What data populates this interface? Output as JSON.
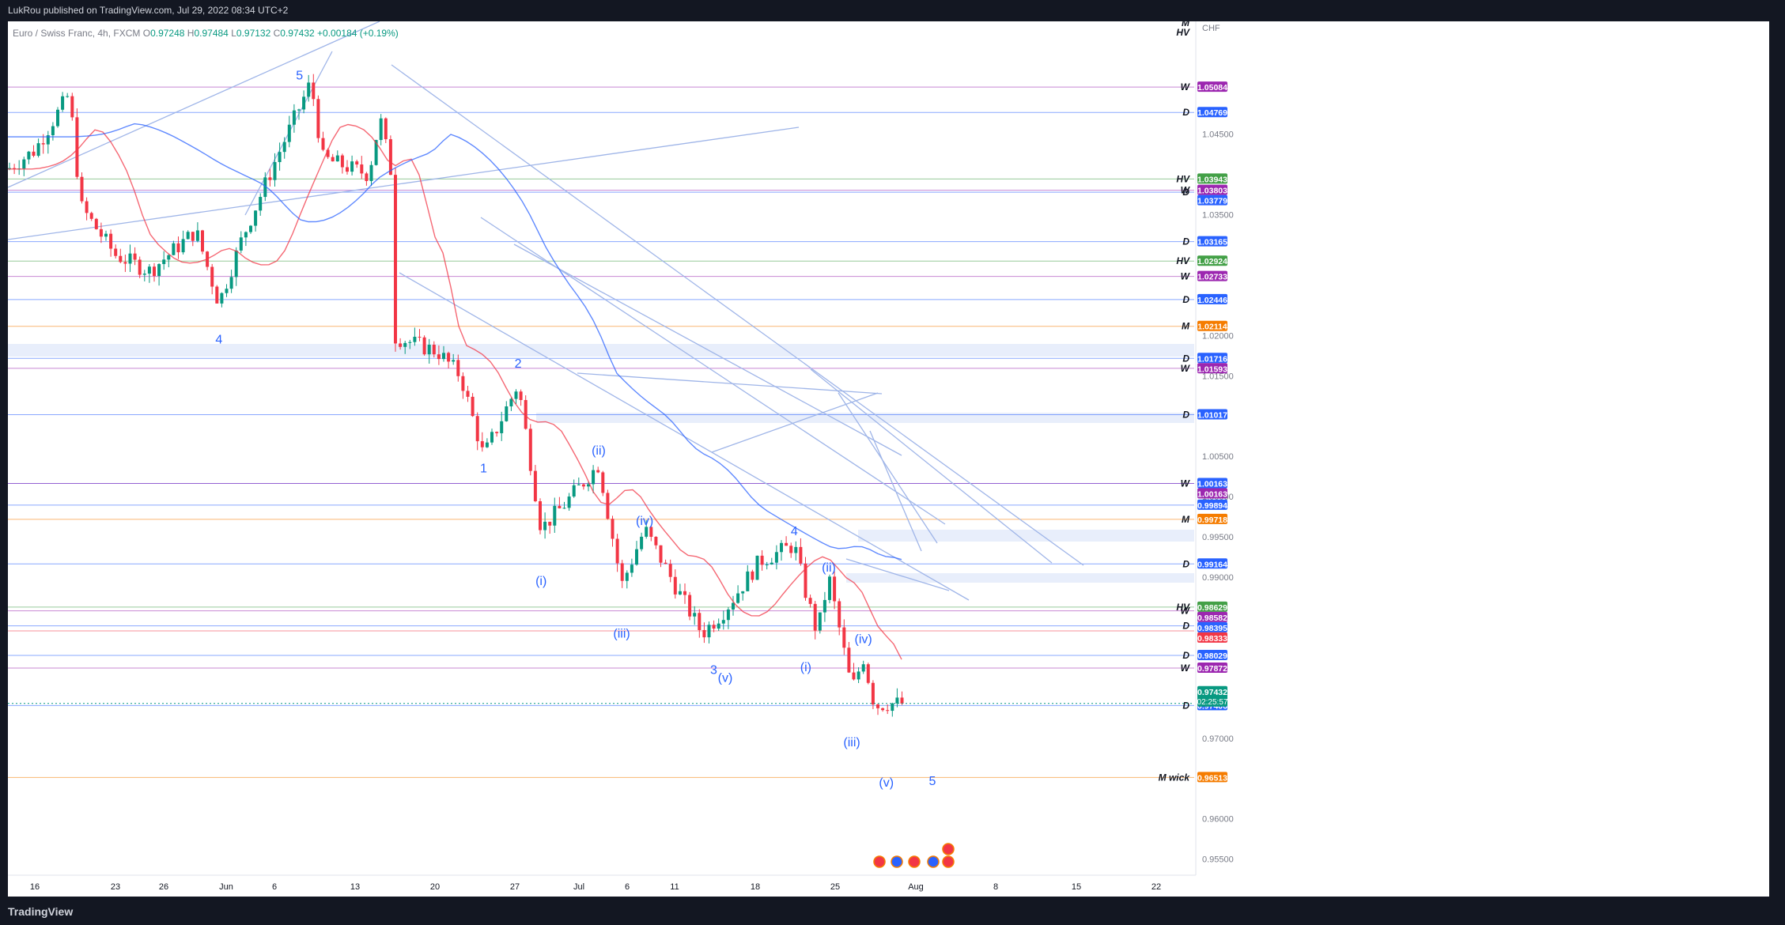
{
  "publisher": "LukRou published on TradingView.com, Jul 29, 2022 08:34 UTC+2",
  "brand": "TradingView",
  "symbol": {
    "name": "Euro / Swiss Franc, 4h, FXCM",
    "open_label": "O",
    "open": "0.97248",
    "high_label": "H",
    "high": "0.97484",
    "low_label": "L",
    "low": "0.97132",
    "close_label": "C",
    "close": "0.97432",
    "change": "+0.00184 (+0.19%)"
  },
  "colors": {
    "up": "#089981",
    "down": "#f23645",
    "ma_fast": "#f23645",
    "ma_slow": "#2962ff",
    "trendline": "#9fb5e8",
    "wave_label": "#2962ff"
  },
  "chart_data": {
    "type": "candlestick",
    "currency": "CHF",
    "y_range": [
      0.953,
      1.059
    ],
    "x_axis_labels": [
      "16",
      "23",
      "26",
      "Jun",
      "6",
      "13",
      "20",
      "27",
      "Jul",
      "6",
      "11",
      "18",
      "25",
      "Aug",
      "8",
      "15",
      "22"
    ],
    "y_tick_labels": [
      "1.04500",
      "1.03500",
      "1.02000",
      "1.01500",
      "1.00500",
      "1.00000",
      "0.99500",
      "0.99000",
      "0.97000",
      "0.96000",
      "0.95500"
    ],
    "price_levels": [
      {
        "value": "1.05084",
        "color": "#9c27b0",
        "tag": "W"
      },
      {
        "value": "1.04769",
        "color": "#2962ff",
        "tag": "D"
      },
      {
        "value": "1.03943",
        "color": "#43a047",
        "tag": "HV"
      },
      {
        "value": "1.03803",
        "color": "#9c27b0",
        "tag": "W"
      },
      {
        "value": "1.03779",
        "color": "#2962ff",
        "tag": "D"
      },
      {
        "value": "1.03165",
        "color": "#2962ff",
        "tag": "D"
      },
      {
        "value": "1.02924",
        "color": "#43a047",
        "tag": "HV"
      },
      {
        "value": "1.02733",
        "color": "#9c27b0",
        "tag": "W"
      },
      {
        "value": "1.02446",
        "color": "#2962ff",
        "tag": "D"
      },
      {
        "value": "1.02114",
        "color": "#f57c00",
        "tag": "M"
      },
      {
        "value": "1.01716",
        "color": "#2962ff",
        "tag": "D"
      },
      {
        "value": "1.01593",
        "color": "#9c27b0",
        "tag": "W"
      },
      {
        "value": "1.01017",
        "color": "#2962ff",
        "tag": "D"
      },
      {
        "value": "1.00163",
        "color": "#2962ff",
        "tag": ""
      },
      {
        "value": "1.00163",
        "color": "#9c27b0",
        "tag": "W"
      },
      {
        "value": "0.99894",
        "color": "#2962ff",
        "tag": ""
      },
      {
        "value": "0.99718",
        "color": "#f57c00",
        "tag": "M"
      },
      {
        "value": "0.99164",
        "color": "#2962ff",
        "tag": "D"
      },
      {
        "value": "0.98629",
        "color": "#43a047",
        "tag": "HV"
      },
      {
        "value": "0.98582",
        "color": "#9c27b0",
        "tag": "W"
      },
      {
        "value": "0.98395",
        "color": "#2962ff",
        "tag": "D"
      },
      {
        "value": "0.98333",
        "color": "#f23645",
        "tag": ""
      },
      {
        "value": "0.98029",
        "color": "#2962ff",
        "tag": "D"
      },
      {
        "value": "0.97872",
        "color": "#9c27b0",
        "tag": "W"
      },
      {
        "value": "0.97406",
        "color": "#2962ff",
        "tag": "D"
      },
      {
        "value": "0.96513",
        "color": "#f57c00",
        "tag": "M wick"
      }
    ],
    "current_price": {
      "value": "0.97432",
      "countdown": "02:25:57",
      "color": "#089981"
    },
    "top_tags": [
      "M",
      "HV"
    ],
    "wave_labels": [
      {
        "text": "5",
        "date": "Jun 8",
        "price": 1.0518
      },
      {
        "text": "4",
        "date": "Jun 1",
        "price": 1.019
      },
      {
        "text": "2",
        "date": "Jun 27",
        "price": 1.016
      },
      {
        "text": "1",
        "date": "Jun 24",
        "price": 1.003
      },
      {
        "text": "(ii)",
        "date": "Jul 4",
        "price": 1.0052
      },
      {
        "text": "(i)",
        "date": "Jun 29",
        "price": 0.989
      },
      {
        "text": "(iv)",
        "date": "Jul 8",
        "price": 0.9965
      },
      {
        "text": "(iii)",
        "date": "Jul 6",
        "price": 0.9825
      },
      {
        "text": "3",
        "date": "Jul 14",
        "price": 0.978
      },
      {
        "text": "(v)",
        "date": "Jul 15",
        "price": 0.977
      },
      {
        "text": "4",
        "date": "Jul 21",
        "price": 0.9952
      },
      {
        "text": "(ii)",
        "date": "Jul 24",
        "price": 0.9907
      },
      {
        "text": "(iv)",
        "date": "Jul 27",
        "price": 0.9818
      },
      {
        "text": "(i)",
        "date": "Jul 22",
        "price": 0.9783
      },
      {
        "text": "(iii)",
        "date": "Jul 26",
        "price": 0.969
      },
      {
        "text": "(v)",
        "date": "Jul 29",
        "price": 0.964
      },
      {
        "text": "5",
        "date": "Aug 2",
        "price": 0.9642
      }
    ]
  }
}
